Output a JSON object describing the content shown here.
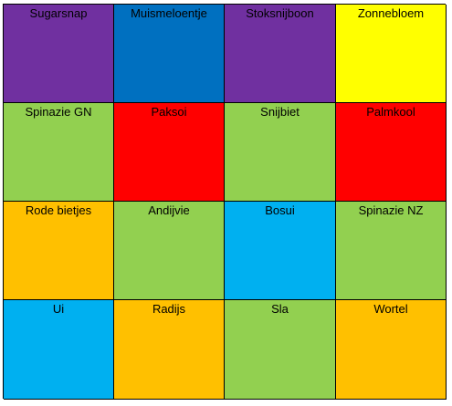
{
  "grid": {
    "cells": [
      {
        "label": "Sugarsnap",
        "color": "#7030A0"
      },
      {
        "label": "Muismeloentje",
        "color": "#0070C0"
      },
      {
        "label": "Stoksnijboon",
        "color": "#7030A0"
      },
      {
        "label": "Zonnebloem",
        "color": "#FFFF00"
      },
      {
        "label": "Spinazie GN",
        "color": "#92D050"
      },
      {
        "label": "Paksoi",
        "color": "#FF0000"
      },
      {
        "label": "Snijbiet",
        "color": "#92D050"
      },
      {
        "label": "Palmkool",
        "color": "#FF0000"
      },
      {
        "label": "Rode bietjes",
        "color": "#FFC000"
      },
      {
        "label": "Andijvie",
        "color": "#92D050"
      },
      {
        "label": "Bosui",
        "color": "#00B0F0"
      },
      {
        "label": "Spinazie NZ",
        "color": "#92D050"
      },
      {
        "label": "Ui",
        "color": "#00B0F0"
      },
      {
        "label": "Radijs",
        "color": "#FFC000"
      },
      {
        "label": "Sla",
        "color": "#92D050"
      },
      {
        "label": "Wortel",
        "color": "#FFC000"
      }
    ]
  }
}
